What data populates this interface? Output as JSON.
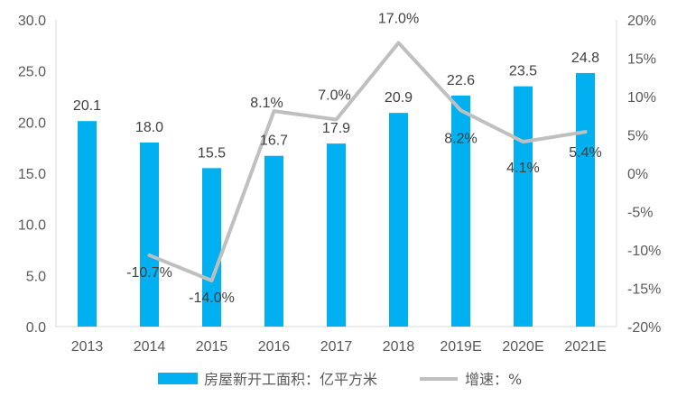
{
  "chart_data": {
    "type": "bar",
    "categories": [
      "2013",
      "2014",
      "2015",
      "2016",
      "2017",
      "2018",
      "2019E",
      "2020E",
      "2021E"
    ],
    "series": [
      {
        "name": "房屋新开工面积：亿平方米",
        "type": "bar",
        "axis": "left",
        "color": "#00B0F0",
        "values": [
          20.1,
          18.0,
          15.5,
          16.7,
          17.9,
          20.9,
          22.6,
          23.5,
          24.8
        ],
        "labels": [
          "20.1",
          "18.0",
          "15.5",
          "16.7",
          "17.9",
          "20.9",
          "22.6",
          "23.5",
          "24.8"
        ]
      },
      {
        "name": "增速：%",
        "type": "line",
        "axis": "right",
        "color": "#BFBFBF",
        "values": [
          null,
          -10.7,
          -14.0,
          8.1,
          7.0,
          17.0,
          8.2,
          4.1,
          5.4
        ],
        "labels": [
          null,
          "-10.7%",
          "-14.0%",
          "8.1%",
          "7.0%",
          "17.0%",
          "8.2%",
          "4.1%",
          "5.4%"
        ]
      }
    ],
    "y_left": {
      "range": [
        0,
        30
      ],
      "ticks": [
        0,
        5,
        10,
        15,
        20,
        25,
        30
      ],
      "tick_labels": [
        "0.0",
        "5.0",
        "10.0",
        "15.0",
        "20.0",
        "25.0",
        "30.0"
      ]
    },
    "y_right": {
      "range": [
        -20,
        20
      ],
      "ticks": [
        -20,
        -15,
        -10,
        -5,
        0,
        5,
        10,
        15,
        20
      ],
      "tick_labels": [
        "-20%",
        "-15%",
        "-10%",
        "-5%",
        "0%",
        "5%",
        "10%",
        "15%",
        "20%"
      ]
    },
    "grid": false,
    "legend_position": "bottom"
  }
}
